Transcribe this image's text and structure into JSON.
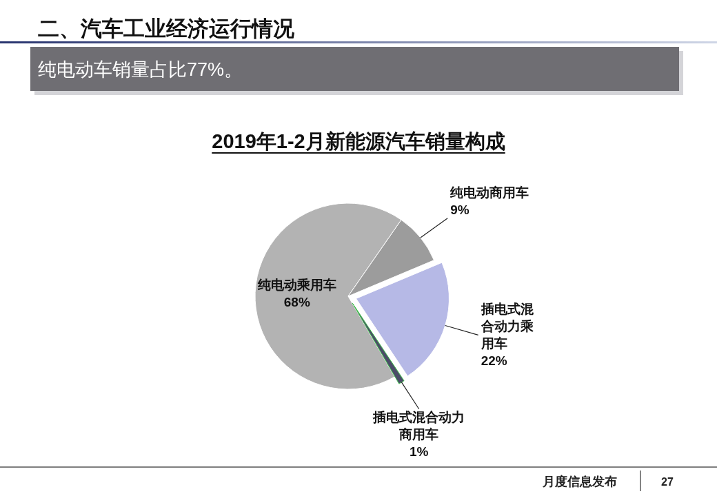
{
  "chart_data": {
    "type": "pie",
    "title": "2019年1-2月新能源汽车销量构成",
    "annotations": [
      "二、汽车工业经济运行情况",
      "纯电动车销量占比77%。",
      "月度信息发布",
      "27"
    ],
    "categories": [
      "纯电动乘用车",
      "纯电动商用车",
      "插电式混合动力乘用车",
      "插电式混合动力商用车"
    ],
    "values": [
      68,
      9,
      22,
      1
    ],
    "colors": [
      "#b3b3b3",
      "#9c9c9c",
      "#b6b9e6",
      "#4b4d68"
    ],
    "value_labels": [
      "68%",
      "9%",
      "22%",
      "1%"
    ]
  }
}
